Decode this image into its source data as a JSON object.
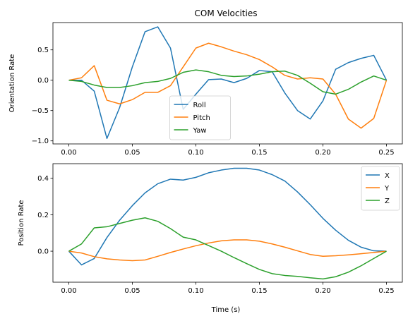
{
  "chart_data": [
    {
      "type": "line",
      "title": "COM Velocities",
      "xlabel": "",
      "ylabel": "Orientation Rate",
      "xlim": [
        -0.0125,
        0.2625
      ],
      "ylim": [
        -1.05,
        0.95
      ],
      "xticks": [
        0.0,
        0.05,
        0.1,
        0.15,
        0.2,
        0.25
      ],
      "xtick_labels": [
        "0.00",
        "0.05",
        "0.10",
        "0.15",
        "0.20",
        "0.25"
      ],
      "yticks": [
        -1.0,
        -0.5,
        0.0,
        0.5
      ],
      "ytick_labels": [
        "−1.0",
        "−0.5",
        "0.0",
        "0.5"
      ],
      "legend": "lower-center",
      "x": [
        0.0,
        0.01,
        0.02,
        0.03,
        0.04,
        0.05,
        0.06,
        0.07,
        0.08,
        0.09,
        0.1,
        0.11,
        0.12,
        0.13,
        0.14,
        0.15,
        0.16,
        0.17,
        0.18,
        0.19,
        0.2,
        0.21,
        0.22,
        0.23,
        0.24,
        0.25
      ],
      "series": [
        {
          "name": "Roll",
          "color": "#1f77b4",
          "values": [
            0.0,
            0.0,
            -0.18,
            -0.96,
            -0.45,
            0.22,
            0.8,
            0.88,
            0.53,
            -0.48,
            -0.23,
            0.01,
            0.02,
            -0.04,
            0.03,
            0.16,
            0.14,
            -0.21,
            -0.5,
            -0.64,
            -0.34,
            0.18,
            0.29,
            0.36,
            0.41,
            0.0
          ]
        },
        {
          "name": "Pitch",
          "color": "#ff7f0e",
          "values": [
            0.0,
            0.04,
            0.24,
            -0.33,
            -0.39,
            -0.32,
            -0.2,
            -0.2,
            -0.09,
            0.22,
            0.53,
            0.61,
            0.55,
            0.48,
            0.42,
            0.34,
            0.22,
            0.08,
            0.02,
            0.04,
            0.02,
            -0.23,
            -0.64,
            -0.79,
            -0.63,
            0.0
          ]
        },
        {
          "name": "Yaw",
          "color": "#2ca02c",
          "values": [
            0.0,
            -0.02,
            -0.08,
            -0.12,
            -0.12,
            -0.09,
            -0.04,
            -0.02,
            0.03,
            0.13,
            0.17,
            0.14,
            0.08,
            0.06,
            0.07,
            0.1,
            0.14,
            0.15,
            0.08,
            -0.05,
            -0.19,
            -0.23,
            -0.15,
            -0.03,
            0.07,
            0.0
          ]
        }
      ]
    },
    {
      "type": "line",
      "title": "",
      "xlabel": "Time (s)",
      "ylabel": "Position Rate",
      "xlim": [
        -0.0125,
        0.2625
      ],
      "ylim": [
        -0.17,
        0.48
      ],
      "xticks": [
        0.0,
        0.05,
        0.1,
        0.15,
        0.2,
        0.25
      ],
      "xtick_labels": [
        "0.00",
        "0.05",
        "0.10",
        "0.15",
        "0.20",
        "0.25"
      ],
      "yticks": [
        0.0,
        0.2,
        0.4
      ],
      "ytick_labels": [
        "0.0",
        "0.2",
        "0.4"
      ],
      "legend": "top-right",
      "x": [
        0.0,
        0.01,
        0.02,
        0.03,
        0.04,
        0.05,
        0.06,
        0.07,
        0.08,
        0.09,
        0.1,
        0.11,
        0.12,
        0.13,
        0.14,
        0.15,
        0.16,
        0.17,
        0.18,
        0.19,
        0.2,
        0.21,
        0.22,
        0.23,
        0.24,
        0.25
      ],
      "series": [
        {
          "name": "X",
          "color": "#1f77b4",
          "values": [
            0.0,
            -0.075,
            -0.04,
            0.075,
            0.17,
            0.25,
            0.32,
            0.37,
            0.395,
            0.39,
            0.405,
            0.43,
            0.445,
            0.455,
            0.455,
            0.445,
            0.42,
            0.385,
            0.325,
            0.255,
            0.18,
            0.115,
            0.06,
            0.022,
            0.002,
            0.0
          ]
        },
        {
          "name": "Y",
          "color": "#ff7f0e",
          "values": [
            0.0,
            -0.01,
            -0.03,
            -0.042,
            -0.048,
            -0.052,
            -0.048,
            -0.028,
            -0.007,
            0.012,
            0.03,
            0.045,
            0.057,
            0.062,
            0.062,
            0.055,
            0.04,
            0.022,
            0.002,
            -0.018,
            -0.028,
            -0.025,
            -0.02,
            -0.014,
            -0.007,
            0.0
          ]
        },
        {
          "name": "Z",
          "color": "#2ca02c",
          "values": [
            0.0,
            0.04,
            0.128,
            0.134,
            0.152,
            0.17,
            0.183,
            0.164,
            0.124,
            0.077,
            0.062,
            0.031,
            0.0,
            -0.035,
            -0.068,
            -0.1,
            -0.123,
            -0.133,
            -0.138,
            -0.146,
            -0.152,
            -0.14,
            -0.115,
            -0.08,
            -0.04,
            0.0
          ]
        }
      ]
    }
  ]
}
